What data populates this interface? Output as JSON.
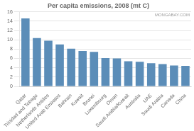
{
  "chart_data": {
    "type": "bar",
    "title": "Per capita emissions, 2008 (mt C)",
    "categories": [
      "Qatar",
      "Trinidad and Tobago",
      "Netherlands Antilles",
      "United Arab Emirates",
      "Bahrain",
      "Kuwait",
      "Brunei",
      "Luxembourg",
      "Oman",
      "Saudi Arabia/Kuwait",
      "Australia",
      "UAE",
      "Saudi Arabia",
      "Canada",
      "China"
    ],
    "values": [
      14.6,
      10.4,
      9.8,
      9.0,
      8.1,
      7.6,
      7.4,
      6.1,
      6.0,
      5.4,
      5.3,
      5.0,
      4.8,
      4.5,
      4.4
    ],
    "color": "#5b8db8",
    "ylim": [
      0,
      16
    ],
    "yticks": [
      0,
      2,
      4,
      6,
      8,
      10,
      12,
      14,
      16
    ],
    "grid": true,
    "annotations": [
      "MONGABAY.COM"
    ]
  }
}
